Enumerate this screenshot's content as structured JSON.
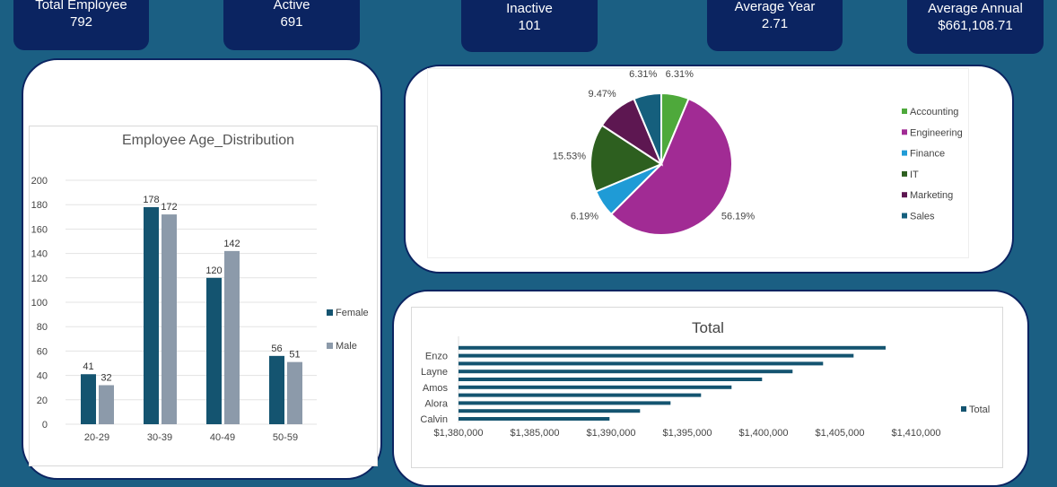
{
  "kpis": [
    {
      "label": "Total Employee",
      "value": "792"
    },
    {
      "label": "Active",
      "value": "691"
    },
    {
      "label": "Inactive",
      "value": "101"
    },
    {
      "label": "Average Year",
      "value": "2.71"
    },
    {
      "label": "Average Annual",
      "value": "$661,108.71"
    }
  ],
  "chart_data": [
    {
      "type": "bar",
      "title": "Employee Age_Distribution",
      "categories": [
        "20-29",
        "30-39",
        "40-49",
        "50-59"
      ],
      "series": [
        {
          "name": "Female",
          "values": [
            41,
            178,
            120,
            56
          ],
          "color": "#145470"
        },
        {
          "name": "Male",
          "values": [
            32,
            172,
            142,
            51
          ],
          "color": "#8c9aaa"
        }
      ],
      "ylim": [
        0,
        200
      ],
      "yticks": [
        0,
        20,
        40,
        60,
        80,
        100,
        120,
        140,
        160,
        180,
        200
      ],
      "grid": true,
      "legend": "right"
    },
    {
      "type": "pie",
      "categories": [
        "Accounting",
        "Engineering",
        "Finance",
        "IT",
        "Marketing",
        "Sales"
      ],
      "values": [
        6.31,
        56.19,
        6.19,
        15.53,
        9.47,
        6.31
      ],
      "labels": [
        "6.31%",
        "56.19%",
        "6.19%",
        "15.53%",
        "9.47%",
        "6.31%"
      ],
      "colors": [
        "#4ea93b",
        "#a12b94",
        "#1f9bd6",
        "#2d5f1f",
        "#5d1751",
        "#155f7d"
      ],
      "legend": "right"
    },
    {
      "type": "bar",
      "orientation": "horizontal",
      "title": "Total",
      "categories": [
        "Calvin",
        "",
        "Alora",
        "",
        "Amos",
        "",
        "Layne",
        "",
        "Enzo",
        ""
      ],
      "series": [
        {
          "name": "Total",
          "values": [
            1389900,
            1391900,
            1393900,
            1395900,
            1397900,
            1399900,
            1401900,
            1403900,
            1405900,
            1408000
          ],
          "color": "#145470"
        }
      ],
      "xlim": [
        1380000,
        1410000
      ],
      "xticks": [
        "$1,380,000",
        "$1,385,000",
        "$1,390,000",
        "$1,395,000",
        "$1,400,000",
        "$1,405,000",
        "$1,410,000"
      ],
      "legend": "right"
    }
  ]
}
